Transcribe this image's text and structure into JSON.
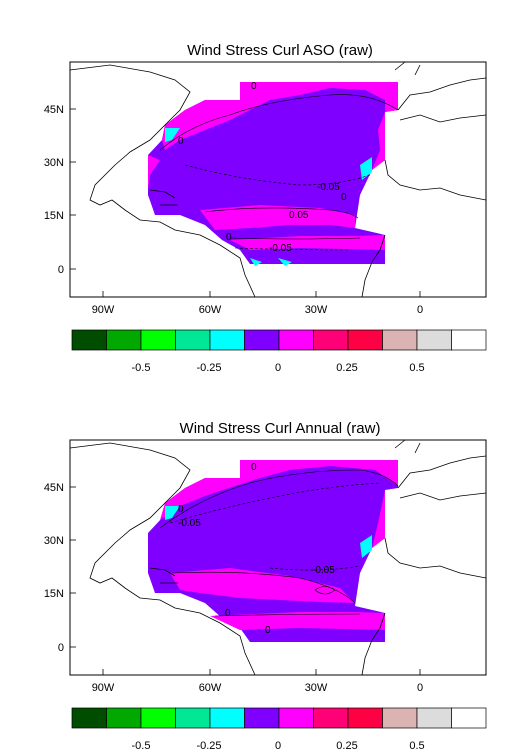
{
  "panels": [
    {
      "title": "Wind Stress Curl ASO (raw)",
      "lat_ticks": [
        "45N",
        "30N",
        "15N",
        "0"
      ],
      "lon_ticks": [
        "90W",
        "60W",
        "30W",
        "0"
      ],
      "contour_labels": [
        "0",
        "0",
        "-0.05",
        "0",
        "0.05",
        "0",
        "-0.05"
      ]
    },
    {
      "title": "Wind Stress Curl Annual (raw)",
      "lat_ticks": [
        "45N",
        "30N",
        "15N",
        "0"
      ],
      "lon_ticks": [
        "90W",
        "60W",
        "30W",
        "0"
      ],
      "contour_labels": [
        "0",
        "-0.05",
        "0",
        "-0.05",
        "0",
        "0"
      ]
    }
  ],
  "colorbar": {
    "colors": [
      "#004d00",
      "#00a800",
      "#00ff00",
      "#00e896",
      "#00ffff",
      "#7f00ff",
      "#ff00ff",
      "#ff0077",
      "#ff0044",
      "#dbb3b3",
      "#dcdcdc",
      "#ffffff"
    ],
    "tick_labels": [
      "-0.5",
      "-0.25",
      "0",
      "0.25",
      "0.5"
    ]
  },
  "colors": {
    "negative_fill": "#7f00ff",
    "positive_fill": "#ff00ff",
    "cyan_fill": "#00ffff"
  }
}
